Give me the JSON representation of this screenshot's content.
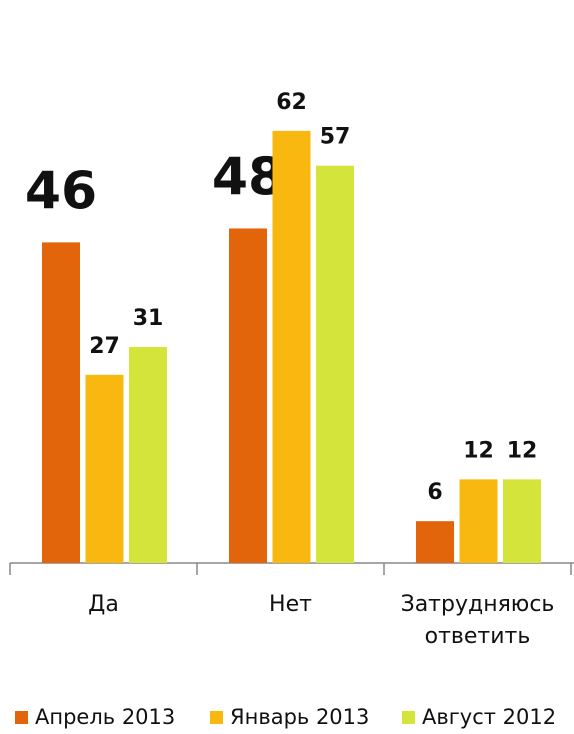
{
  "chart_data": {
    "type": "bar",
    "categories": [
      "Да",
      "Нет",
      "Затрудняюсь ответить"
    ],
    "series": [
      {
        "name": "Апрель 2013",
        "color": "#e2650c",
        "values": [
          46,
          48,
          6
        ]
      },
      {
        "name": "Январь 2013",
        "color": "#f9b80f",
        "values": [
          27,
          62,
          12
        ]
      },
      {
        "name": "Август 2012",
        "color": "#d4e43a",
        "values": [
          31,
          57,
          12
        ]
      }
    ]
  }
}
